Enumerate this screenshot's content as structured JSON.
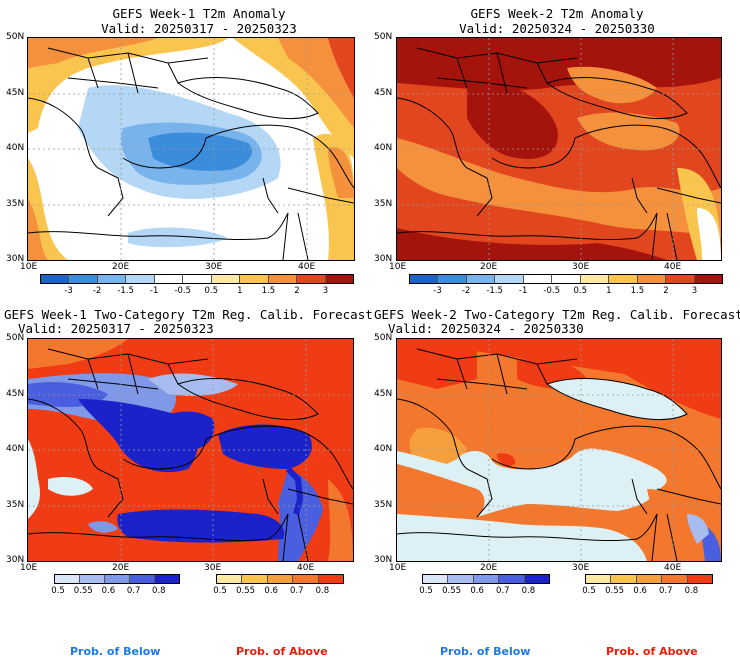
{
  "colors": {
    "anomaly": [
      "#1e63c8",
      "#3c8cdc",
      "#78b4eb",
      "#b4d7f5",
      "#ffffff",
      "#ffffff",
      "#fde9a4",
      "#f9c54f",
      "#f5913c",
      "#e1461e",
      "#a5130d"
    ],
    "prob_below": [
      "#dbe6f7",
      "#a9bcef",
      "#7f98e8",
      "#4a5fdf",
      "#1c22c9"
    ],
    "prob_above": [
      "#fde9a4",
      "#f9c54f",
      "#f5a03c",
      "#f3782d",
      "#f03c14"
    ],
    "no_signal": "#dcf0f5",
    "prob_below_text": "#1e78e6",
    "prob_above_text": "#e61e0a"
  },
  "panels": [
    {
      "id": "w1-anomaly",
      "type": "anomaly",
      "title": "GEFS Week-1 T2m Anomaly",
      "valid": "Valid: 20250317 - 20250323",
      "colorbar_labels": [
        "-3",
        "-2",
        "-1.5",
        "-1",
        "-0.5",
        "0.5",
        "1",
        "1.5",
        "2",
        "3"
      ]
    },
    {
      "id": "w2-anomaly",
      "type": "anomaly",
      "title": "GEFS Week-2 T2m Anomaly",
      "valid": "Valid: 20250324 - 20250330",
      "colorbar_labels": [
        "-3",
        "-2",
        "-1.5",
        "-1",
        "-0.5",
        "0.5",
        "1",
        "1.5",
        "2",
        "3"
      ]
    },
    {
      "id": "w1-prob",
      "type": "prob",
      "title": "GEFS Week-1 Two-Category T2m Reg. Calib. Forecast",
      "valid": "Valid: 20250317 - 20250323",
      "below_labels": [
        "0.5",
        "0.55",
        "0.6",
        "0.7",
        "0.8"
      ],
      "above_labels": [
        "0.5",
        "0.55",
        "0.6",
        "0.7",
        "0.8"
      ],
      "below_text": "Prob. of Below",
      "above_text": "Prob. of Above"
    },
    {
      "id": "w2-prob",
      "type": "prob",
      "title": "GEFS Week-2 Two-Category T2m Reg. Calib. Forecast",
      "valid": "Valid: 20250324 - 20250330",
      "below_labels": [
        "0.5",
        "0.55",
        "0.6",
        "0.7",
        "0.8"
      ],
      "above_labels": [
        "0.5",
        "0.55",
        "0.6",
        "0.7",
        "0.8"
      ],
      "below_text": "Prob. of Below",
      "above_text": "Prob. of Above"
    }
  ],
  "axes": {
    "lat_labels": [
      "50N",
      "45N",
      "40N",
      "35N",
      "30N"
    ],
    "lon_labels": [
      "10E",
      "20E",
      "30E",
      "40E"
    ]
  }
}
